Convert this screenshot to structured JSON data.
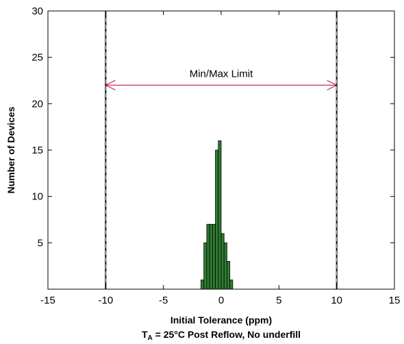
{
  "chart_data": {
    "type": "bar",
    "chart_kind": "histogram",
    "xlabel": "Initial Tolerance (ppm)",
    "xlabel2": {
      "prefix": "T",
      "subscript": "A",
      "suffix": " = 25°C Post Reflow, No underfill"
    },
    "ylabel": "Number of Devices",
    "xlim": [
      -15,
      15
    ],
    "ylim": [
      0,
      30
    ],
    "xticks": [
      -15,
      -10,
      -5,
      0,
      5,
      10,
      15
    ],
    "yticks": [
      5,
      10,
      15,
      20,
      25,
      30
    ],
    "grid": false,
    "bin_width": 0.25,
    "bins": [
      {
        "x": -1.75,
        "count": 1
      },
      {
        "x": -1.5,
        "count": 5
      },
      {
        "x": -1.25,
        "count": 7
      },
      {
        "x": -1.0,
        "count": 7
      },
      {
        "x": -0.75,
        "count": 7
      },
      {
        "x": -0.5,
        "count": 15
      },
      {
        "x": -0.25,
        "count": 16
      },
      {
        "x": 0.0,
        "count": 6
      },
      {
        "x": 0.25,
        "count": 5
      },
      {
        "x": 0.5,
        "count": 3
      },
      {
        "x": 0.75,
        "count": 1
      }
    ],
    "limit_lines": [
      -10,
      10
    ],
    "annotation": {
      "text": "Min/Max Limit",
      "y": 22,
      "x_from": -10,
      "x_to": 10
    },
    "colors": {
      "bar_fill": "#2e7d32",
      "bar_edge": "#000000",
      "arrow": "#b0003a",
      "limit_line": "#000000"
    }
  }
}
